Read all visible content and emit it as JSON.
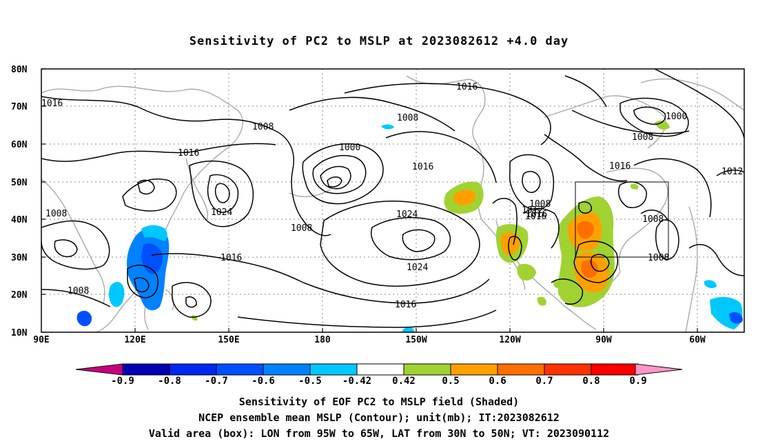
{
  "title": "Sensitivity of PC2 to MSLP at 2023082612 +4.0 day",
  "map": {
    "lat_ticks": [
      "80N",
      "70N",
      "60N",
      "50N",
      "40N",
      "30N",
      "20N",
      "10N"
    ],
    "lon_ticks": [
      "90E",
      "120E",
      "150E",
      "180",
      "150W",
      "120W",
      "90W",
      "60W"
    ],
    "contour_labels": [
      "1016",
      "1016",
      "1008",
      "1008",
      "1016",
      "1024",
      "1000",
      "1008",
      "1016",
      "1024",
      "1024",
      "1016",
      "1016",
      "1012",
      "1008",
      "1016",
      "1008",
      "1000",
      "1008",
      "1016",
      "1012",
      "1008",
      "1008",
      "1016",
      "1008"
    ],
    "valid_box": {
      "lon": [
        "95W",
        "65W"
      ],
      "lat": [
        "30N",
        "50N"
      ]
    }
  },
  "colorbar": {
    "labels": [
      "-0.9",
      "-0.8",
      "-0.7",
      "-0.6",
      "-0.5",
      "-0.42",
      "0.42",
      "0.5",
      "0.6",
      "0.7",
      "0.8",
      "0.9"
    ],
    "colors": [
      "#0000b4",
      "#0028f0",
      "#0050ff",
      "#0082ff",
      "#00c8ff",
      "#ffffff",
      "#a0d232",
      "#ffa000",
      "#ff6e00",
      "#ff3200",
      "#ff0000"
    ],
    "end_low": "#c8007d",
    "end_high": "#ff96c8"
  },
  "footer": {
    "line1": "Sensitivity of EOF PC2 to MSLP field (Shaded)",
    "line2": "NCEP ensemble mean MSLP (Contour); unit(mb); IT:2023082612",
    "line3": "Valid area (box): LON from 95W to 65W, LAT from 30N to 50N; VT: 2023090112"
  }
}
